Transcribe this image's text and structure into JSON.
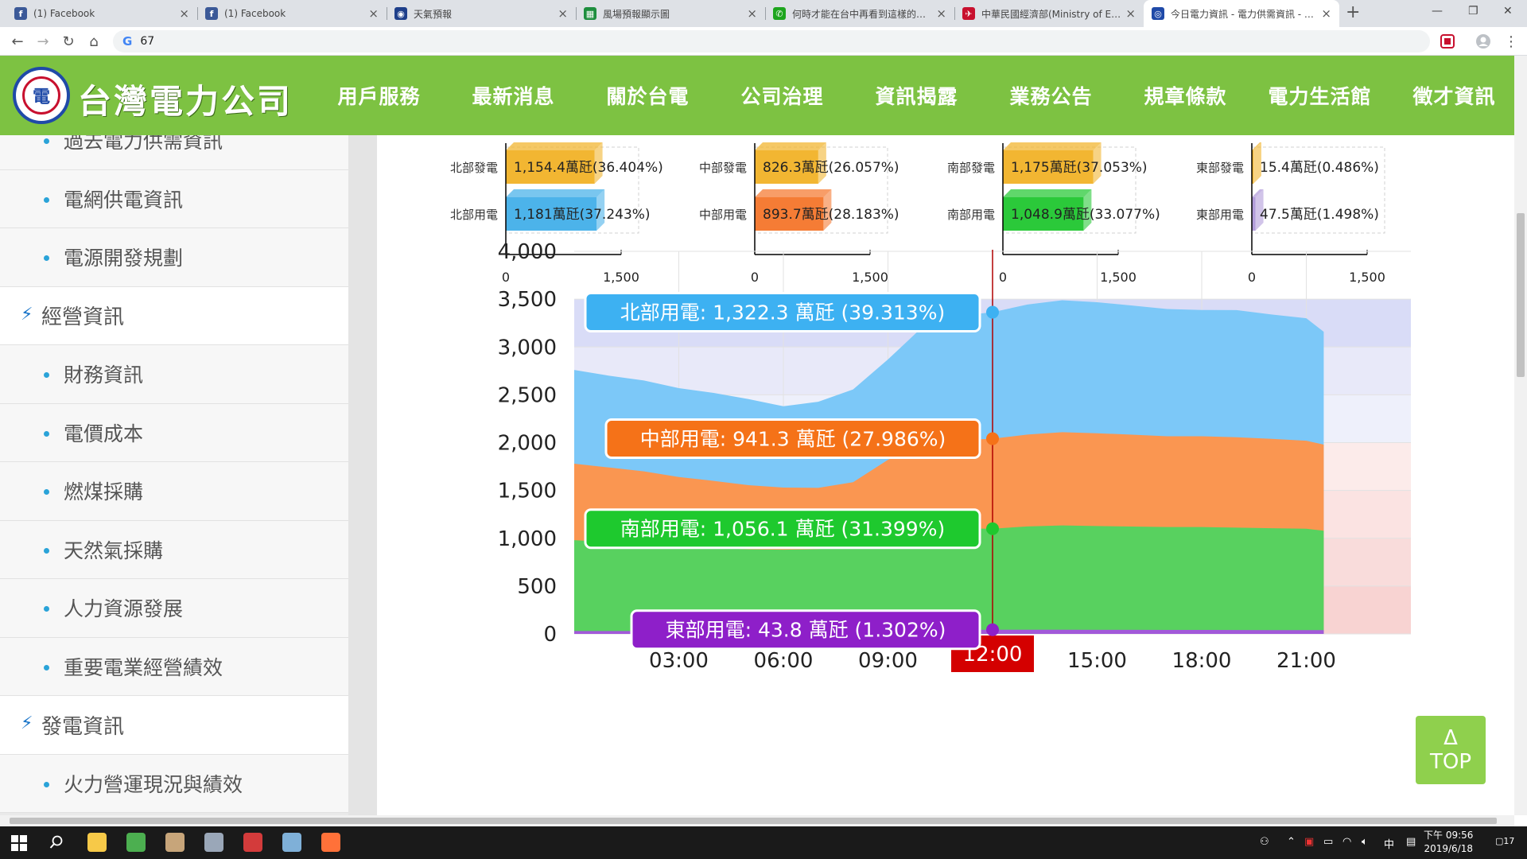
{
  "browser": {
    "tabs": [
      {
        "title": "(1) Facebook",
        "icon": "facebook-icon",
        "color": "#3b5998",
        "glyph": "f",
        "x": 8,
        "w": 240
      },
      {
        "title": "(1) Facebook",
        "icon": "facebook-icon",
        "color": "#3b5998",
        "glyph": "f",
        "x": 248,
        "w": 238
      },
      {
        "title": "天氣預報",
        "icon": "eye-icon",
        "color": "#1e3f8a",
        "glyph": "◉",
        "x": 486,
        "w": 238
      },
      {
        "title": "風場預報顯示圖",
        "icon": "sheet-icon",
        "color": "#1e8e3e",
        "glyph": "▦",
        "x": 724,
        "w": 238
      },
      {
        "title": "何時才能在台中再看到這樣的藍天",
        "icon": "chat-icon",
        "color": "#1ea51e",
        "glyph": "✆",
        "x": 962,
        "w": 238
      },
      {
        "title": "中華民國經濟部(Ministry of Economic Affairs)",
        "icon": "moea-icon",
        "color": "#c8102e",
        "glyph": "✈",
        "x": 1200,
        "w": 238
      },
      {
        "title": "今日電力資訊 - 電力供需資訊 - 台灣電力公司",
        "icon": "taipower-icon",
        "color": "#1f4aa8",
        "glyph": "◎",
        "x": 1438,
        "w": 246,
        "active": true
      }
    ],
    "address": "67",
    "address_prefix": "G"
  },
  "site": {
    "name": "台灣電力公司",
    "logo_glyph": "電",
    "nav": [
      "用戶服務",
      "最新消息",
      "關於台電",
      "公司治理",
      "資訊揭露",
      "業務公告",
      "規章條款",
      "電力生活館",
      "徵才資訊"
    ]
  },
  "sidebar": {
    "items": [
      {
        "label": "過去電力供需資訊",
        "type": "sub"
      },
      {
        "label": "電網供電資訊",
        "type": "sub"
      },
      {
        "label": "電源開發規劃",
        "type": "sub"
      },
      {
        "label": "經營資訊",
        "type": "cat"
      },
      {
        "label": "財務資訊",
        "type": "sub"
      },
      {
        "label": "電價成本",
        "type": "sub"
      },
      {
        "label": "燃煤採購",
        "type": "sub"
      },
      {
        "label": "天然氣採購",
        "type": "sub"
      },
      {
        "label": "人力資源發展",
        "type": "sub"
      },
      {
        "label": "重要電業經營績效",
        "type": "sub"
      },
      {
        "label": "發電資訊",
        "type": "cat"
      },
      {
        "label": "火力營運現況與績效",
        "type": "sub"
      }
    ]
  },
  "chart_data": [
    {
      "type": "bar",
      "orientation": "horizontal",
      "region": "北部",
      "categories": [
        "北部發電",
        "北部用電"
      ],
      "values": [
        1154.4,
        1181
      ],
      "labels": [
        "1,154.4萬瓩(36.404%)",
        "1,181萬瓩(37.243%)"
      ],
      "colors": [
        "#f2b632",
        "#4cb3ea"
      ],
      "xlim": [
        0,
        1500
      ],
      "xticks": [
        "0",
        "1,500"
      ]
    },
    {
      "type": "bar",
      "orientation": "horizontal",
      "region": "中部",
      "categories": [
        "中部發電",
        "中部用電"
      ],
      "values": [
        826.3,
        893.7
      ],
      "labels": [
        "826.3萬瓩(26.057%)",
        "893.7萬瓩(28.183%)"
      ],
      "colors": [
        "#f2b632",
        "#f57c35"
      ],
      "xlim": [
        0,
        1500
      ],
      "xticks": [
        "0",
        "1,500"
      ]
    },
    {
      "type": "bar",
      "orientation": "horizontal",
      "region": "南部",
      "categories": [
        "南部發電",
        "南部用電"
      ],
      "values": [
        1175,
        1048.9
      ],
      "labels": [
        "1,175萬瓩(37.053%)",
        "1,048.9萬瓩(33.077%)"
      ],
      "colors": [
        "#f2b632",
        "#2bc93a"
      ],
      "xlim": [
        0,
        1500
      ],
      "xticks": [
        "0",
        "1,500"
      ]
    },
    {
      "type": "bar",
      "orientation": "horizontal",
      "region": "東部",
      "categories": [
        "東部發電",
        "東部用電"
      ],
      "values": [
        15.4,
        47.5
      ],
      "labels": [
        "15.4萬瓩(0.486%)",
        "47.5萬瓩(1.498%)"
      ],
      "colors": [
        "#f2b632",
        "#b39ddb"
      ],
      "xlim": [
        0,
        1500
      ],
      "xticks": [
        "0",
        "1,500"
      ]
    },
    {
      "type": "area",
      "stacked": true,
      "ylim": [
        0,
        4000
      ],
      "yticks": [
        "0",
        "500",
        "1,000",
        "1,500",
        "2,000",
        "2,500",
        "3,000",
        "3,500",
        "4,000"
      ],
      "xlim": [
        0,
        24
      ],
      "xticks": [
        {
          "hour": 3,
          "label": "03:00"
        },
        {
          "hour": 6,
          "label": "06:00"
        },
        {
          "hour": 9,
          "label": "09:00"
        },
        {
          "hour": 15,
          "label": "15:00"
        },
        {
          "hour": 18,
          "label": "18:00"
        },
        {
          "hour": 21,
          "label": "21:00"
        }
      ],
      "cursor": {
        "hour": 12,
        "label": "12:00"
      },
      "bands": [
        {
          "from": 3000,
          "to": 3500,
          "color": "#d9dcf7"
        },
        {
          "from": 2500,
          "to": 3000,
          "color": "#e8e9f9"
        },
        {
          "from": 2000,
          "to": 2500,
          "color": "#eef0fb"
        },
        {
          "from": 1500,
          "to": 2000,
          "color": "#fcebea"
        },
        {
          "from": 1000,
          "to": 1500,
          "color": "#fbe3e2"
        },
        {
          "from": 500,
          "to": 1000,
          "color": "#f9dcdb"
        },
        {
          "from": 0,
          "to": 500,
          "color": "#f8d3d2"
        }
      ],
      "x": [
        0,
        1,
        2,
        3,
        4,
        5,
        6,
        7,
        8,
        9,
        10,
        11,
        12,
        13,
        14,
        15,
        16,
        17,
        18,
        19,
        20,
        21,
        21.5
      ],
      "series": [
        {
          "name": "東部用電",
          "color": "#a259d9",
          "values": [
            30,
            30,
            30,
            30,
            30,
            30,
            30,
            32,
            36,
            40,
            42,
            43,
            43.8,
            44,
            44,
            43,
            43,
            42,
            42,
            41,
            40,
            40,
            39
          ]
        },
        {
          "name": "南部用電",
          "color": "#58d15f",
          "values": [
            950,
            930,
            910,
            890,
            870,
            855,
            850,
            855,
            900,
            1000,
            1060,
            1060,
            1056.1,
            1080,
            1090,
            1085,
            1080,
            1075,
            1075,
            1070,
            1065,
            1060,
            1040
          ]
        },
        {
          "name": "中部用電",
          "color": "#fa9651",
          "values": [
            800,
            780,
            760,
            720,
            700,
            670,
            650,
            640,
            650,
            780,
            880,
            920,
            941.3,
            960,
            975,
            970,
            960,
            950,
            950,
            945,
            935,
            920,
            900
          ]
        },
        {
          "name": "北部用電",
          "color": "#7cc8f8",
          "values": [
            980,
            960,
            950,
            930,
            920,
            900,
            850,
            900,
            970,
            1050,
            1230,
            1300,
            1322.3,
            1360,
            1380,
            1370,
            1350,
            1330,
            1320,
            1330,
            1300,
            1280,
            1180
          ]
        }
      ],
      "tooltips": [
        {
          "series": "北部用電",
          "text": "北部用電: 1,322.3 萬瓩 (39.313%)",
          "value": 3363.5,
          "color": "#3db1f2"
        },
        {
          "series": "中部用電",
          "text": "中部用電: 941.3 萬瓩 (27.986%)",
          "value": 2041.2,
          "color": "#f57218"
        },
        {
          "series": "南部用電",
          "text": "南部用電: 1,056.1 萬瓩 (31.399%)",
          "value": 1099.9,
          "color": "#1ec92e"
        },
        {
          "series": "東部用電",
          "text": "東部用電: 43.8 萬瓩 (1.302%)",
          "value": 43.8,
          "color": "#8e1fc9"
        }
      ]
    }
  ],
  "top_button": {
    "arrow": "Δ",
    "label": "TOP"
  },
  "taskbar": {
    "apps": [
      {
        "icon": "file-explorer-icon",
        "color": "#f7c948"
      },
      {
        "icon": "chrome-icon",
        "color": "#4caf50"
      },
      {
        "icon": "fox-app-icon",
        "color": "#c7a57a"
      },
      {
        "icon": "paint-app-icon",
        "color": "#9aa7b8"
      },
      {
        "icon": "game-app-icon",
        "color": "#d33b3b"
      },
      {
        "icon": "notepad-app-icon",
        "color": "#7fb0d8"
      },
      {
        "icon": "firefox-icon",
        "color": "#ff7139"
      }
    ],
    "ime": "中",
    "time": "下午 09:56",
    "date": "2019/6/18",
    "notifications": "17"
  }
}
